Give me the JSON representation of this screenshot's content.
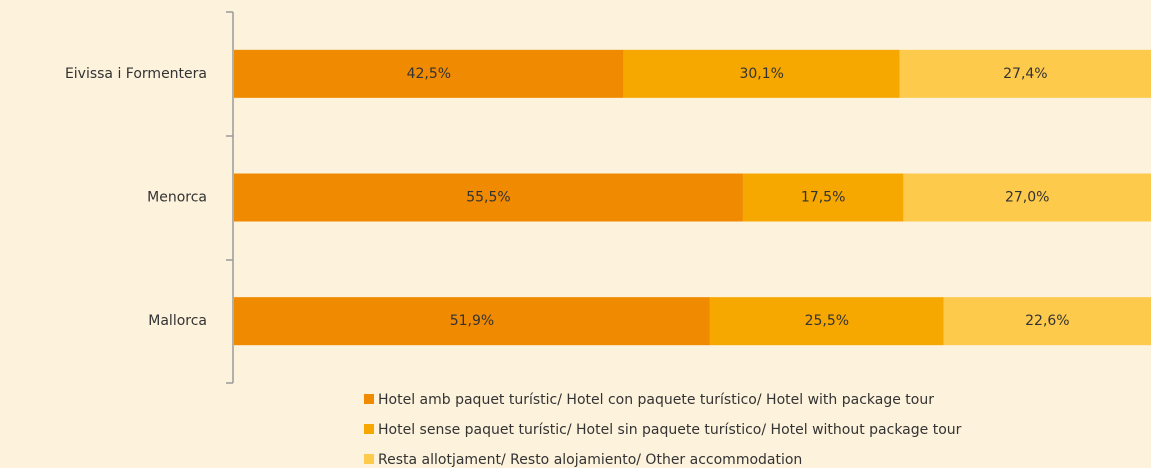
{
  "chart_data": {
    "type": "stacked-bar-horizontal",
    "categories": [
      "Eivissa i Formentera",
      "Menorca",
      "Mallorca"
    ],
    "series": [
      {
        "name": "Hotel amb paquet turístic/ Hotel con paquete turístico/ Hotel with package tour",
        "color": "#f08a00",
        "values": [
          42.5,
          55.5,
          51.9
        ],
        "value_labels": [
          "42,5%",
          "55,5%",
          "51,9%"
        ]
      },
      {
        "name": "Hotel sense paquet turístic/ Hotel sin paquete turístico/ Hotel without package tour",
        "color": "#f6a800",
        "values": [
          30.1,
          17.5,
          25.5
        ],
        "value_labels": [
          "30,1%",
          "17,5%",
          "25,5%"
        ]
      },
      {
        "name": "Resta allotjament/ Resto alojamiento/ Other accommodation",
        "color": "#fdca4c",
        "values": [
          27.4,
          27.0,
          22.6
        ],
        "value_labels": [
          "27,4%",
          "27,0%",
          "22,6%"
        ]
      }
    ]
  }
}
